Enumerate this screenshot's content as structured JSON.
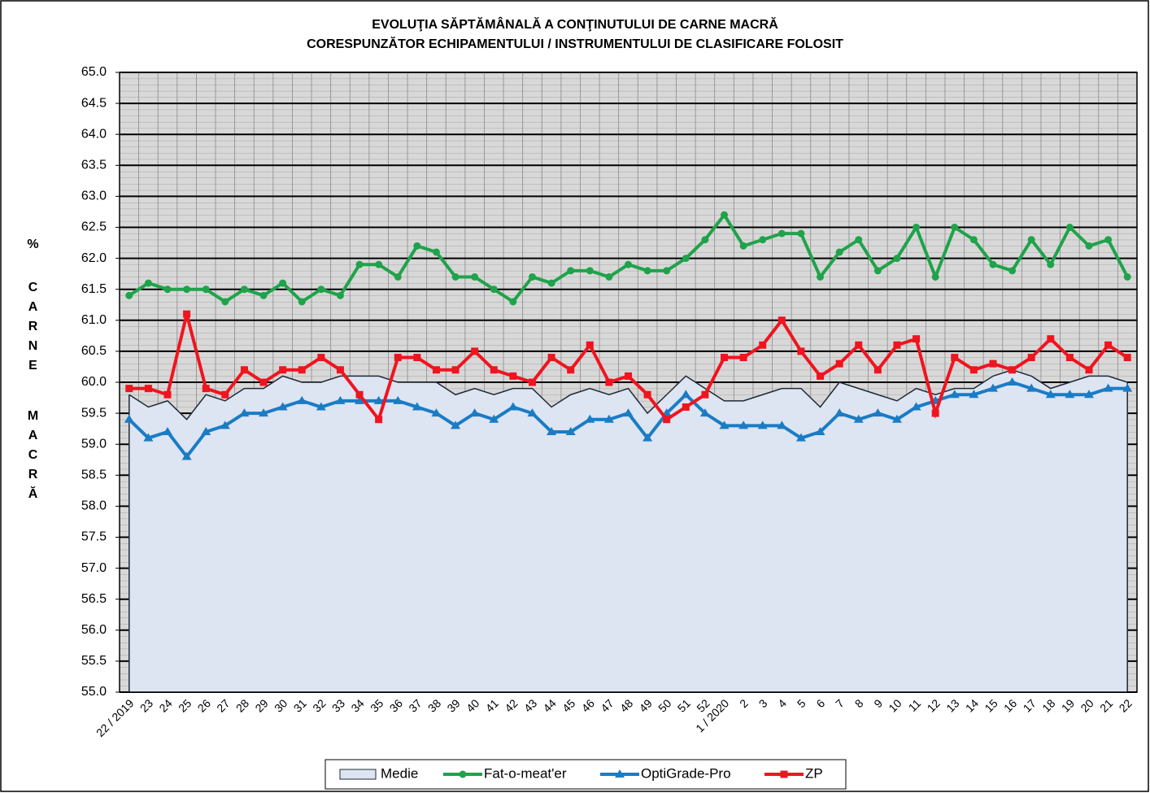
{
  "chart_data": {
    "type": "line",
    "title": "EVOLUŢIA SĂPTĂMÂNALĂ  A CONŢINUTULUI DE CARNE MACRĂ",
    "subtitle": "CORESPUNZĂTOR   ECHIPAMENTULUI /  INSTRUMENTULUI  DE CLASIFICARE FOLOSIT",
    "ylabel": [
      "%",
      "CARNE",
      "MACRĂ"
    ],
    "categories": [
      "22 / 2019",
      "23",
      "24",
      "25",
      "26",
      "27",
      "28",
      "29",
      "30",
      "31",
      "32",
      "33",
      "34",
      "35",
      "36",
      "37",
      "38",
      "39",
      "40",
      "41",
      "42",
      "43",
      "44",
      "45",
      "46",
      "47",
      "48",
      "49",
      "50",
      "51",
      "52",
      "1 / 2020",
      "2",
      "3",
      "4",
      "5",
      "6",
      "7",
      "8",
      "9",
      "10",
      "11",
      "12",
      "13",
      "14",
      "15",
      "16",
      "17",
      "18",
      "19",
      "20",
      "21",
      "22"
    ],
    "series": [
      {
        "name": "Medie",
        "kind": "area",
        "color": "#dde4f2",
        "line_color": "#1f2a36",
        "values": [
          59.8,
          59.6,
          59.7,
          59.4,
          59.8,
          59.7,
          59.9,
          59.9,
          60.1,
          60.0,
          60.0,
          60.1,
          60.1,
          60.1,
          60.0,
          60.0,
          60.0,
          59.8,
          59.9,
          59.8,
          59.9,
          59.9,
          59.6,
          59.8,
          59.9,
          59.8,
          59.9,
          59.5,
          59.8,
          60.1,
          59.9,
          59.7,
          59.7,
          59.8,
          59.9,
          59.9,
          59.6,
          60.0,
          59.9,
          59.8,
          59.7,
          59.9,
          59.8,
          59.9,
          59.9,
          60.1,
          60.2,
          60.1,
          59.9,
          60.0,
          60.1,
          60.1,
          60.0
        ]
      },
      {
        "name": "Fat-o-meat'er",
        "kind": "line",
        "marker": "circle",
        "color": "#1fa34a",
        "values": [
          61.4,
          61.6,
          61.5,
          61.5,
          61.5,
          61.3,
          61.5,
          61.4,
          61.6,
          61.3,
          61.5,
          61.4,
          61.9,
          61.9,
          61.7,
          62.2,
          62.1,
          61.7,
          61.7,
          61.5,
          61.3,
          61.7,
          61.6,
          61.8,
          61.8,
          61.7,
          61.9,
          61.8,
          61.8,
          62.0,
          62.3,
          62.7,
          62.2,
          62.3,
          62.4,
          62.4,
          61.7,
          62.1,
          62.3,
          61.8,
          62.0,
          62.5,
          61.7,
          62.5,
          62.3,
          61.9,
          61.8,
          62.3,
          61.9,
          62.5,
          62.2,
          62.3,
          61.7
        ]
      },
      {
        "name": "OptiGrade-Pro",
        "kind": "line",
        "marker": "triangle",
        "color": "#1a7cc4",
        "values": [
          59.4,
          59.1,
          59.2,
          58.8,
          59.2,
          59.3,
          59.5,
          59.5,
          59.6,
          59.7,
          59.6,
          59.7,
          59.7,
          59.7,
          59.7,
          59.6,
          59.5,
          59.3,
          59.5,
          59.4,
          59.6,
          59.5,
          59.2,
          59.2,
          59.4,
          59.4,
          59.5,
          59.1,
          59.5,
          59.8,
          59.5,
          59.3,
          59.3,
          59.3,
          59.3,
          59.1,
          59.2,
          59.5,
          59.4,
          59.5,
          59.4,
          59.6,
          59.7,
          59.8,
          59.8,
          59.9,
          60.0,
          59.9,
          59.8,
          59.8,
          59.8,
          59.9,
          59.9
        ]
      },
      {
        "name": "ZP",
        "kind": "line",
        "marker": "square",
        "color": "#f0141e",
        "values": [
          59.9,
          59.9,
          59.8,
          61.1,
          59.9,
          59.8,
          60.2,
          60.0,
          60.2,
          60.2,
          60.4,
          60.2,
          59.8,
          59.4,
          60.4,
          60.4,
          60.2,
          60.2,
          60.5,
          60.2,
          60.1,
          60.0,
          60.4,
          60.2,
          60.6,
          60.0,
          60.1,
          59.8,
          59.4,
          59.6,
          59.8,
          60.4,
          60.4,
          60.6,
          61.0,
          60.5,
          60.1,
          60.3,
          60.6,
          60.2,
          60.6,
          60.7,
          59.5,
          60.4,
          60.2,
          60.3,
          60.2,
          60.4,
          60.7,
          60.4,
          60.2,
          60.6,
          60.4
        ]
      }
    ],
    "ylim": [
      55,
      65
    ],
    "yticks": [
      {
        "value": 55,
        "label": "55.0"
      },
      {
        "value": 55.5,
        "label": "55.5"
      },
      {
        "value": 56,
        "label": "56.0"
      },
      {
        "value": 56.5,
        "label": "56.5"
      },
      {
        "value": 57,
        "label": "57.0"
      },
      {
        "value": 57.5,
        "label": "57.5"
      },
      {
        "value": 58,
        "label": "58.0"
      },
      {
        "value": 58.5,
        "label": "58.5"
      },
      {
        "value": 59,
        "label": "59.0"
      },
      {
        "value": 59.5,
        "label": "59.5"
      },
      {
        "value": 60,
        "label": "60.0"
      },
      {
        "value": 60.5,
        "label": "60.5"
      },
      {
        "value": 61,
        "label": "61.0"
      },
      {
        "value": 61.5,
        "label": "61.5"
      },
      {
        "value": 62,
        "label": "62.0"
      },
      {
        "value": 62.5,
        "label": "62.5"
      },
      {
        "value": 63,
        "label": "63.0"
      },
      {
        "value": 63.5,
        "label": "63.5"
      },
      {
        "value": 64,
        "label": "64.0"
      },
      {
        "value": 64.5,
        "label": "64.5"
      },
      {
        "value": 65,
        "label": "65.0"
      }
    ],
    "grid": true,
    "legend": "bottom"
  }
}
